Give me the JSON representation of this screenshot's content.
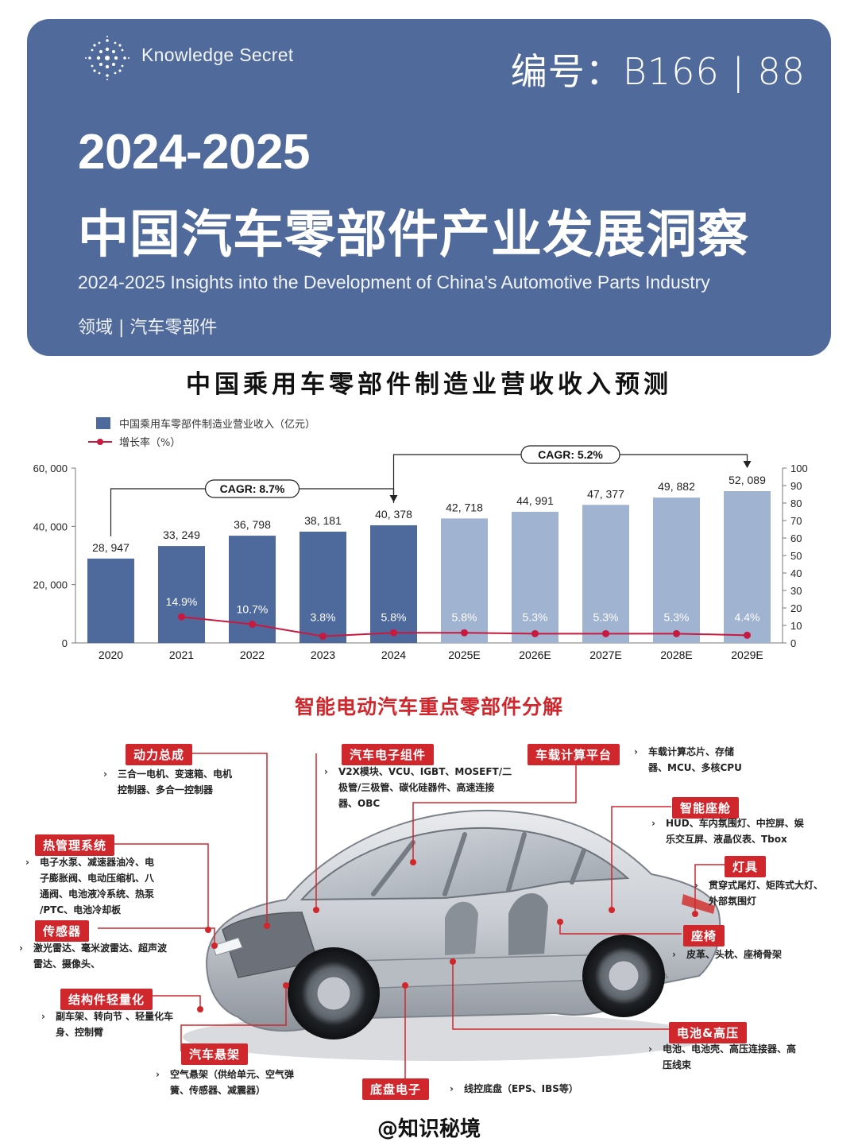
{
  "header": {
    "brand": "Knowledge Secret",
    "serial": "编号：B166 | 88",
    "title_years": "2024-2025",
    "title_cn": "中国汽车零部件产业发展洞察",
    "title_en": "2024-2025 Insights into the Development of China's Automotive Parts Industry",
    "field": "领域 | 汽车零部件"
  },
  "chart_title": "中国乘用车零部件制造业营收收入预测",
  "chart_data": {
    "type": "bar",
    "categories": [
      "2020",
      "2021",
      "2022",
      "2023",
      "2024",
      "2025E",
      "2026E",
      "2027E",
      "2028E",
      "2029E"
    ],
    "series": [
      {
        "name": "中国乘用车零部件制造业营业收入（亿元）",
        "type": "bar",
        "axis": "left",
        "values": [
          28947,
          33249,
          36798,
          38181,
          40378,
          42718,
          44991,
          47377,
          49882,
          52089
        ],
        "labels": [
          "28, 947",
          "33, 249",
          "36, 798",
          "38, 181",
          "40, 378",
          "42, 718",
          "44, 991",
          "47, 377",
          "49, 882",
          "52, 089"
        ]
      },
      {
        "name": "增长率（%）",
        "type": "line",
        "axis": "right",
        "values": [
          null,
          14.9,
          10.7,
          3.8,
          5.8,
          5.8,
          5.3,
          5.3,
          5.3,
          4.4
        ],
        "labels": [
          "",
          "14.9%",
          "10.7%",
          "3.8%",
          "5.8%",
          "5.8%",
          "5.3%",
          "5.3%",
          "5.3%",
          "4.4%"
        ]
      }
    ],
    "ylim_left": [
      0,
      60000
    ],
    "yticks_left": [
      "0",
      "20, 000",
      "40, 000",
      "60, 000"
    ],
    "ylim_right": [
      0,
      100
    ],
    "yticks_right": [
      "0",
      "10",
      "20",
      "30",
      "40",
      "50",
      "60",
      "70",
      "80",
      "90",
      "100"
    ],
    "annotations": [
      {
        "text": "CAGR: 8.7%",
        "from": "2020",
        "to": "2024"
      },
      {
        "text": "CAGR: 5.2%",
        "from": "2024",
        "to": "2029E"
      }
    ],
    "colors": {
      "actual": "#4e6a9d",
      "forecast": "#a0b3d1",
      "line": "#c8193f"
    },
    "legend_position": "top-left"
  },
  "breakdown": {
    "title": "智能电动汽车重点零部件分解",
    "items": [
      {
        "tag": "动力总成",
        "lines": [
          "三合一电机、变速箱、电机",
          "控制器、多合一控制器"
        ]
      },
      {
        "tag": "汽车电子组件",
        "lines": [
          "V2X模块、VCU、IGBT、MOSEFT/二",
          "极管/三极管、碳化硅器件、高速连接",
          "器、OBC"
        ]
      },
      {
        "tag": "车载计算平台",
        "lines": [
          "车载计算芯片、存储",
          "器、MCU、多核CPU"
        ]
      },
      {
        "tag": "智能座舱",
        "lines": [
          "HUD、车内氛围灯、中控屏、娱",
          "乐交互屏、液晶仪表、Tbox"
        ]
      },
      {
        "tag": "热管理系统",
        "lines": [
          "电子水泵、减速器油冷、电",
          "子膨胀阀、电动压缩机、八",
          "通阀、电池液冷系统、热泵",
          "/PTC、电池冷却板"
        ]
      },
      {
        "tag": "灯具",
        "lines": [
          "贯穿式尾灯、矩阵式大灯、",
          "外部氛围灯"
        ]
      },
      {
        "tag": "传感器",
        "lines": [
          "激光雷达、毫米波雷达、超声波",
          "雷达、摄像头、"
        ]
      },
      {
        "tag": "座椅",
        "lines": [
          "皮革、头枕、座椅骨架"
        ]
      },
      {
        "tag": "结构件轻量化",
        "lines": [
          "副车架、转向节 、轻量化车",
          "身、控制臂"
        ]
      },
      {
        "tag": "电池&高压",
        "lines": [
          "电池、电池壳、高压连接器、高",
          "压线束"
        ]
      },
      {
        "tag": "汽车悬架",
        "lines": [
          "空气悬架（供给单元、空气弹",
          "簧、传感器、减震器）"
        ]
      },
      {
        "tag": "底盘电子",
        "lines": [
          "线控底盘（EPS、IBS等）"
        ]
      }
    ]
  },
  "footer": "@知识秘境"
}
